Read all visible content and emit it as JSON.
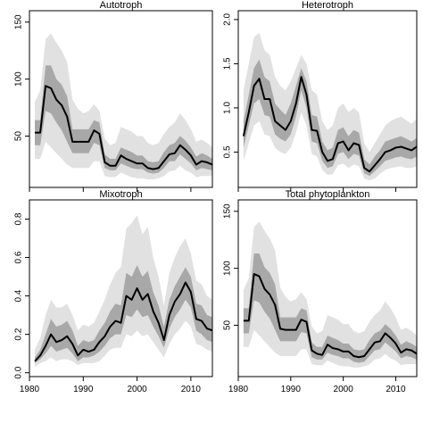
{
  "chart_data": [
    {
      "type": "line",
      "title": "Autotroph",
      "xlabel": "",
      "ylabel": "",
      "xlim": [
        1980,
        2014
      ],
      "ylim": [
        5,
        160
      ],
      "xticks": [
        1980,
        1990,
        2000,
        2010
      ],
      "yticks": [
        50,
        100,
        150
      ],
      "show_xtick_labels": false,
      "colors": {
        "outer_band": "#e1e1e1",
        "inner_band": "#a8a8a8",
        "line": "#000000"
      },
      "x": [
        1981,
        1982,
        1983,
        1984,
        1985,
        1986,
        1987,
        1988,
        1989,
        1990,
        1991,
        1992,
        1993,
        1994,
        1995,
        1996,
        1997,
        1998,
        1999,
        2000,
        2001,
        2002,
        2003,
        2004,
        2005,
        2006,
        2007,
        2008,
        2009,
        2010,
        2011,
        2012,
        2013,
        2014
      ],
      "median": [
        53,
        53,
        94,
        92,
        82,
        77,
        67,
        45,
        45,
        45,
        45,
        55,
        52,
        27,
        24,
        24,
        33,
        30,
        28,
        26,
        26,
        22,
        21,
        22,
        28,
        34,
        35,
        42,
        38,
        33,
        25,
        28,
        27,
        25
      ],
      "inner_low": [
        42,
        42,
        72,
        70,
        62,
        55,
        45,
        35,
        35,
        35,
        35,
        44,
        42,
        22,
        20,
        20,
        26,
        24,
        22,
        21,
        21,
        18,
        17,
        18,
        22,
        28,
        28,
        34,
        30,
        26,
        20,
        22,
        21,
        20
      ],
      "inner_high": [
        64,
        64,
        112,
        112,
        100,
        95,
        85,
        56,
        56,
        56,
        56,
        64,
        62,
        34,
        30,
        30,
        40,
        38,
        36,
        33,
        33,
        28,
        27,
        28,
        36,
        42,
        44,
        50,
        46,
        40,
        32,
        35,
        33,
        30
      ],
      "outer_low": [
        30,
        30,
        45,
        40,
        35,
        30,
        25,
        22,
        22,
        22,
        22,
        28,
        28,
        15,
        14,
        14,
        18,
        16,
        14,
        13,
        13,
        12,
        12,
        13,
        15,
        19,
        20,
        24,
        20,
        18,
        14,
        15,
        15,
        15
      ],
      "outer_high": [
        80,
        90,
        135,
        140,
        132,
        125,
        115,
        82,
        74,
        70,
        72,
        78,
        72,
        48,
        42,
        44,
        58,
        56,
        54,
        50,
        50,
        44,
        42,
        44,
        52,
        58,
        62,
        70,
        64,
        56,
        45,
        47,
        44,
        40
      ]
    },
    {
      "type": "line",
      "title": "Heterotroph",
      "xlabel": "",
      "ylabel": "",
      "xlim": [
        1980,
        2014
      ],
      "ylim": [
        0.1,
        2.1
      ],
      "xticks": [
        1980,
        1990,
        2000,
        2010
      ],
      "yticks": [
        0.5,
        1.0,
        1.5,
        2.0
      ],
      "ytick_labels": [
        "0.5",
        "1.0",
        "1.5",
        "2.0"
      ],
      "show_xtick_labels": false,
      "colors": {
        "outer_band": "#e1e1e1",
        "inner_band": "#a8a8a8",
        "line": "#000000"
      },
      "x": [
        1981,
        1982,
        1983,
        1984,
        1985,
        1986,
        1987,
        1988,
        1989,
        1990,
        1991,
        1992,
        1993,
        1994,
        1995,
        1996,
        1997,
        1998,
        1999,
        2000,
        2001,
        2002,
        2003,
        2004,
        2005,
        2006,
        2007,
        2008,
        2009,
        2010,
        2011,
        2012,
        2013,
        2014
      ],
      "median": [
        0.68,
        0.95,
        1.25,
        1.33,
        1.1,
        1.1,
        0.85,
        0.8,
        0.75,
        0.85,
        1.05,
        1.35,
        1.15,
        0.75,
        0.74,
        0.5,
        0.4,
        0.42,
        0.6,
        0.62,
        0.52,
        0.6,
        0.58,
        0.32,
        0.28,
        0.35,
        0.42,
        0.5,
        0.52,
        0.55,
        0.56,
        0.54,
        0.52,
        0.56
      ],
      "inner_low": [
        0.55,
        0.8,
        1.05,
        1.1,
        0.92,
        0.9,
        0.7,
        0.65,
        0.62,
        0.7,
        0.9,
        1.2,
        1.0,
        0.62,
        0.6,
        0.4,
        0.32,
        0.34,
        0.48,
        0.5,
        0.42,
        0.48,
        0.46,
        0.26,
        0.23,
        0.28,
        0.34,
        0.4,
        0.42,
        0.44,
        0.45,
        0.43,
        0.42,
        0.45
      ],
      "inner_high": [
        0.85,
        1.15,
        1.45,
        1.55,
        1.35,
        1.3,
        1.05,
        0.98,
        0.92,
        1.05,
        1.25,
        1.45,
        1.3,
        0.92,
        0.9,
        0.62,
        0.52,
        0.55,
        0.75,
        0.78,
        0.68,
        0.75,
        0.72,
        0.42,
        0.36,
        0.45,
        0.52,
        0.62,
        0.64,
        0.66,
        0.68,
        0.65,
        0.62,
        0.66
      ],
      "outer_low": [
        0.4,
        0.6,
        0.8,
        0.85,
        0.7,
        0.68,
        0.55,
        0.5,
        0.48,
        0.55,
        0.72,
        0.95,
        0.8,
        0.48,
        0.45,
        0.3,
        0.24,
        0.25,
        0.35,
        0.37,
        0.32,
        0.36,
        0.34,
        0.2,
        0.18,
        0.2,
        0.25,
        0.3,
        0.32,
        0.33,
        0.34,
        0.32,
        0.32,
        0.34
      ],
      "outer_high": [
        1.2,
        1.5,
        1.8,
        1.85,
        1.65,
        1.6,
        1.35,
        1.25,
        1.2,
        1.3,
        1.45,
        1.6,
        1.5,
        1.2,
        1.15,
        0.85,
        0.75,
        0.8,
        1.0,
        1.05,
        0.95,
        1.0,
        0.95,
        0.6,
        0.5,
        0.6,
        0.7,
        0.8,
        0.85,
        0.88,
        0.9,
        0.86,
        0.82,
        0.88
      ]
    },
    {
      "type": "line",
      "title": "Mixotroph",
      "xlabel": "",
      "ylabel": "",
      "xlim": [
        1980,
        2014
      ],
      "ylim": [
        -0.02,
        0.9
      ],
      "xticks": [
        1980,
        1990,
        2000,
        2010
      ],
      "yticks": [
        0.0,
        0.2,
        0.4,
        0.6,
        0.8
      ],
      "ytick_labels": [
        "0.0",
        "0.2",
        "0.4",
        "0.6",
        "0.8"
      ],
      "show_xtick_labels": true,
      "colors": {
        "outer_band": "#e1e1e1",
        "inner_band": "#a8a8a8",
        "line": "#000000"
      },
      "x": [
        1981,
        1982,
        1983,
        1984,
        1985,
        1986,
        1987,
        1988,
        1989,
        1990,
        1991,
        1992,
        1993,
        1994,
        1995,
        1996,
        1997,
        1998,
        1999,
        2000,
        2001,
        2002,
        2003,
        2004,
        2005,
        2006,
        2007,
        2008,
        2009,
        2010,
        2011,
        2012,
        2013,
        2014
      ],
      "median": [
        0.06,
        0.09,
        0.14,
        0.2,
        0.16,
        0.17,
        0.19,
        0.15,
        0.09,
        0.12,
        0.11,
        0.12,
        0.16,
        0.19,
        0.24,
        0.27,
        0.26,
        0.4,
        0.38,
        0.44,
        0.38,
        0.41,
        0.32,
        0.26,
        0.17,
        0.3,
        0.37,
        0.41,
        0.47,
        0.42,
        0.28,
        0.27,
        0.23,
        0.22
      ],
      "inner_low": [
        0.05,
        0.07,
        0.1,
        0.14,
        0.11,
        0.12,
        0.13,
        0.1,
        0.06,
        0.08,
        0.08,
        0.09,
        0.11,
        0.14,
        0.18,
        0.2,
        0.2,
        0.3,
        0.29,
        0.33,
        0.29,
        0.3,
        0.24,
        0.19,
        0.13,
        0.23,
        0.29,
        0.33,
        0.38,
        0.34,
        0.22,
        0.2,
        0.17,
        0.16
      ],
      "inner_high": [
        0.08,
        0.12,
        0.2,
        0.28,
        0.24,
        0.25,
        0.27,
        0.22,
        0.14,
        0.17,
        0.16,
        0.17,
        0.22,
        0.26,
        0.32,
        0.36,
        0.35,
        0.52,
        0.5,
        0.56,
        0.5,
        0.53,
        0.42,
        0.35,
        0.24,
        0.38,
        0.45,
        0.5,
        0.55,
        0.5,
        0.36,
        0.35,
        0.3,
        0.29
      ],
      "outer_low": [
        0.03,
        0.05,
        0.06,
        0.08,
        0.06,
        0.07,
        0.07,
        0.06,
        0.04,
        0.05,
        0.05,
        0.05,
        0.06,
        0.09,
        0.12,
        0.13,
        0.13,
        0.2,
        0.19,
        0.22,
        0.19,
        0.2,
        0.16,
        0.12,
        0.08,
        0.15,
        0.2,
        0.23,
        0.27,
        0.24,
        0.15,
        0.14,
        0.12,
        0.11
      ],
      "outer_high": [
        0.12,
        0.18,
        0.3,
        0.38,
        0.34,
        0.34,
        0.36,
        0.3,
        0.22,
        0.25,
        0.24,
        0.26,
        0.32,
        0.38,
        0.46,
        0.52,
        0.55,
        0.75,
        0.78,
        0.82,
        0.72,
        0.76,
        0.6,
        0.5,
        0.35,
        0.52,
        0.6,
        0.66,
        0.7,
        0.62,
        0.48,
        0.46,
        0.4,
        0.38
      ]
    },
    {
      "type": "line",
      "title": "Total phytoplankton",
      "xlabel": "",
      "ylabel": "",
      "xlim": [
        1980,
        2014
      ],
      "ylim": [
        5,
        160
      ],
      "xticks": [
        1980,
        1990,
        2000,
        2010
      ],
      "yticks": [
        50,
        100,
        150
      ],
      "show_xtick_labels": true,
      "colors": {
        "outer_band": "#e1e1e1",
        "inner_band": "#a8a8a8",
        "line": "#000000"
      },
      "x": [
        1981,
        1982,
        1983,
        1984,
        1985,
        1986,
        1987,
        1988,
        1989,
        1990,
        1991,
        1992,
        1993,
        1994,
        1995,
        1996,
        1997,
        1998,
        1999,
        2000,
        2001,
        2002,
        2003,
        2004,
        2005,
        2006,
        2007,
        2008,
        2009,
        2010,
        2011,
        2012,
        2013,
        2014
      ],
      "median": [
        54,
        54,
        95,
        93,
        82,
        77,
        68,
        47,
        46,
        46,
        46,
        55,
        53,
        28,
        25,
        24,
        33,
        30,
        29,
        27,
        27,
        23,
        22,
        23,
        29,
        35,
        36,
        43,
        39,
        34,
        26,
        29,
        28,
        25
      ],
      "inner_low": [
        43,
        43,
        72,
        70,
        62,
        56,
        46,
        36,
        36,
        36,
        36,
        44,
        43,
        22,
        20,
        20,
        26,
        24,
        23,
        21,
        21,
        18,
        17,
        18,
        23,
        28,
        29,
        35,
        31,
        27,
        21,
        23,
        22,
        20
      ],
      "inner_high": [
        65,
        65,
        113,
        113,
        101,
        96,
        86,
        57,
        57,
        57,
        57,
        65,
        63,
        35,
        31,
        31,
        41,
        39,
        37,
        34,
        34,
        29,
        28,
        29,
        37,
        43,
        45,
        51,
        47,
        41,
        33,
        36,
        34,
        31
      ],
      "outer_low": [
        31,
        31,
        46,
        41,
        36,
        31,
        26,
        23,
        23,
        23,
        23,
        29,
        29,
        16,
        15,
        15,
        19,
        17,
        15,
        14,
        14,
        13,
        13,
        14,
        16,
        20,
        21,
        25,
        21,
        19,
        15,
        16,
        16,
        16
      ],
      "outer_high": [
        81,
        91,
        136,
        141,
        133,
        126,
        116,
        83,
        75,
        71,
        73,
        79,
        73,
        49,
        43,
        45,
        59,
        57,
        55,
        51,
        51,
        45,
        43,
        45,
        53,
        59,
        63,
        71,
        65,
        57,
        46,
        48,
        45,
        41
      ]
    }
  ]
}
